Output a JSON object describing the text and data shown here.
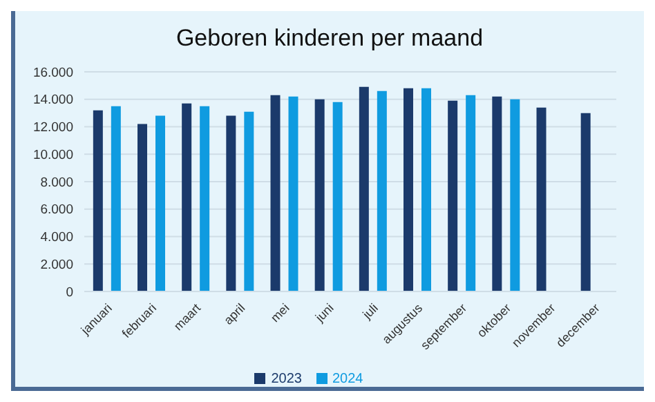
{
  "chart_data": {
    "type": "bar",
    "title": "Geboren kinderen per maand",
    "categories": [
      "januari",
      "februari",
      "maart",
      "april",
      "mei",
      "juni",
      "juli",
      "augustus",
      "september",
      "oktober",
      "november",
      "december"
    ],
    "series": [
      {
        "name": "2023",
        "color": "#1b3a6b",
        "values": [
          13200,
          12200,
          13700,
          12800,
          14300,
          14000,
          14900,
          14800,
          13900,
          14200,
          13400,
          13000
        ]
      },
      {
        "name": "2024",
        "color": "#0f9be0",
        "values": [
          13500,
          12800,
          13500,
          13100,
          14200,
          13800,
          14600,
          14800,
          14300,
          14000,
          null,
          null
        ]
      }
    ],
    "ylim": [
      0,
      16000
    ],
    "yticks": [
      {
        "value": 0,
        "label": "0"
      },
      {
        "value": 2000,
        "label": "2.000"
      },
      {
        "value": 4000,
        "label": "4.000"
      },
      {
        "value": 6000,
        "label": "6.000"
      },
      {
        "value": 8000,
        "label": "8.000"
      },
      {
        "value": 10000,
        "label": "10.000"
      },
      {
        "value": 12000,
        "label": "12.000"
      },
      {
        "value": 14000,
        "label": "14.000"
      },
      {
        "value": 16000,
        "label": "16.000"
      }
    ],
    "grid": "y",
    "legend": "bottom"
  }
}
